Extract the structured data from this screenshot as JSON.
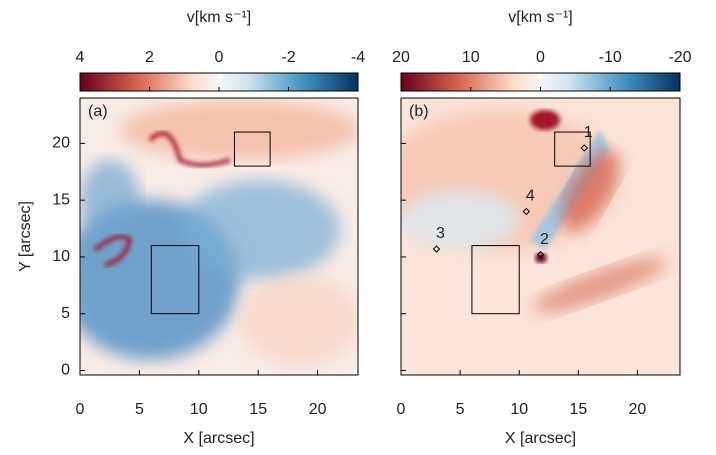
{
  "chart_data": [
    {
      "type": "image",
      "panel_label": "(a)",
      "colorbar_label": "v[km s⁻¹]",
      "clim": [
        4,
        -4
      ],
      "cticks": [
        4,
        2,
        0,
        -2,
        -4
      ],
      "xlabel": "X [arcsec]",
      "ylabel": "Y [arcsec]",
      "xlim": [
        0,
        23.4
      ],
      "ylim": [
        -0.4,
        24
      ],
      "xticks": [
        0,
        5,
        10,
        15,
        20
      ],
      "yticks": [
        0,
        5,
        10,
        15,
        20
      ],
      "regions": [
        {
          "x": [
            13,
            16
          ],
          "y": [
            18,
            21
          ]
        },
        {
          "x": [
            6,
            10
          ],
          "y": [
            5,
            11
          ]
        }
      ]
    },
    {
      "type": "image",
      "panel_label": "(b)",
      "colorbar_label": "v[km s⁻¹]",
      "clim": [
        20,
        -20
      ],
      "cticks": [
        20,
        10,
        0,
        -10,
        -20
      ],
      "xlabel": "X [arcsec]",
      "xlim": [
        0,
        23.6
      ],
      "ylim": [
        -0.4,
        24
      ],
      "xticks": [
        0,
        5,
        10,
        15,
        20
      ],
      "yticks": [
        0,
        5,
        10,
        15,
        20
      ],
      "regions": [
        {
          "x": [
            13,
            16
          ],
          "y": [
            18,
            21
          ]
        },
        {
          "x": [
            6,
            10
          ],
          "y": [
            5,
            11
          ]
        }
      ],
      "points": [
        {
          "label": "1",
          "x": 15.5,
          "y": 19.6
        },
        {
          "label": "2",
          "x": 11.8,
          "y": 10.2
        },
        {
          "label": "3",
          "x": 3.0,
          "y": 10.7
        },
        {
          "label": "4",
          "x": 10.6,
          "y": 14.0
        }
      ]
    }
  ]
}
